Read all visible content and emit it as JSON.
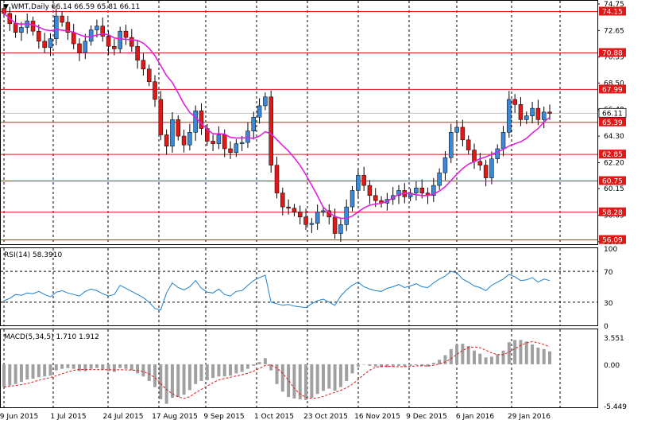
{
  "chart_data": {
    "type": "candlestick",
    "symbol_header": "WMT,Daily  66.14 66.59 65.81 66.11",
    "x_labels": [
      "9 Jun 2015",
      "1 Jul 2015",
      "24 Jul 2015",
      "17 Aug 2015",
      "9 Sep 2015",
      "1 Oct 2015",
      "23 Oct 2015",
      "16 Nov 2015",
      "9 Dec 2015",
      "6 Jan 2016",
      "29 Jan 2016"
    ],
    "price_axis": {
      "ylim": [
        55.75,
        75.0
      ],
      "ticks": [
        "74.75",
        "72.65",
        "70.55",
        "68.50",
        "66.40",
        "64.30",
        "62.20",
        "60.15",
        "58.05",
        "55.95"
      ]
    },
    "levels": [
      "74.15",
      "70.88",
      "67.99",
      "65.39",
      "62.85",
      "60.75",
      "58.28",
      "56.09"
    ],
    "last_price": "66.11",
    "ma_color": "#e020e0",
    "up_color": "#3c88d8",
    "down_color": "#e01818",
    "price_path": [
      74.0,
      73.2,
      72.5,
      72.9,
      73.4,
      72.6,
      71.8,
      71.3,
      72.0,
      73.8,
      73.3,
      72.5,
      71.6,
      70.9,
      71.8,
      72.7,
      73.0,
      72.2,
      71.4,
      71.2,
      72.6,
      72.1,
      71.4,
      70.3,
      69.6,
      68.6,
      67.2,
      64.4,
      63.5,
      65.6,
      64.3,
      63.6,
      64.6,
      66.3,
      64.9,
      63.9,
      63.7,
      64.4,
      63.3,
      63.0,
      63.7,
      63.8,
      64.7,
      65.8,
      66.7,
      67.4,
      62.0,
      59.8,
      58.7,
      58.6,
      58.3,
      57.9,
      57.3,
      57.4,
      58.3,
      58.4,
      57.9,
      56.6,
      57.3,
      58.7,
      60.0,
      61.2,
      60.4,
      59.6,
      59.2,
      59.0,
      59.3,
      59.6,
      60.0,
      59.5,
      59.8,
      60.2,
      59.8,
      59.6,
      60.4,
      61.4,
      62.6,
      64.6,
      65.0,
      64.0,
      63.2,
      62.3,
      62.0,
      61.0,
      62.5,
      63.3,
      64.6,
      67.2,
      66.8,
      65.6,
      65.9,
      66.5,
      65.6,
      66.2,
      66.1
    ],
    "rsi": {
      "label": "RSI(14) 58.3910",
      "ylim": [
        0,
        100
      ],
      "ticks": [
        "100",
        "70",
        "30",
        "0"
      ],
      "color": "#1e80d0",
      "values": [
        32,
        35,
        40,
        39,
        42,
        41,
        44,
        40,
        37,
        43,
        45,
        42,
        40,
        38,
        44,
        47,
        45,
        41,
        38,
        40,
        52,
        48,
        44,
        40,
        36,
        30,
        22,
        20,
        42,
        55,
        49,
        46,
        50,
        58,
        48,
        43,
        42,
        47,
        40,
        38,
        44,
        45,
        52,
        58,
        62,
        65,
        30,
        28,
        26,
        27,
        25,
        24,
        23,
        28,
        32,
        34,
        30,
        26,
        38,
        46,
        52,
        56,
        50,
        47,
        45,
        44,
        48,
        50,
        53,
        49,
        51,
        54,
        50,
        49,
        55,
        60,
        64,
        70,
        68,
        60,
        56,
        51,
        49,
        45,
        52,
        56,
        60,
        66,
        63,
        58,
        59,
        62,
        56,
        60,
        58
      ]
    },
    "macd": {
      "label": "MACD(5,34,5)  1.710 1.912",
      "ylim": [
        -5.449,
        3.551
      ],
      "ticks": [
        "3.551",
        "0.00",
        "-5.449"
      ],
      "hist_color": "#a0a0a0",
      "signal_color": "#e01818",
      "values": [
        -3.0,
        -2.8,
        -2.6,
        -2.3,
        -2.0,
        -1.9,
        -1.7,
        -1.6,
        -1.5,
        -0.8,
        -0.6,
        -0.5,
        -0.6,
        -0.9,
        -0.9,
        -0.6,
        -0.5,
        -0.7,
        -0.9,
        -1.0,
        -0.5,
        -0.6,
        -0.8,
        -1.2,
        -1.6,
        -2.2,
        -3.0,
        -4.6,
        -5.2,
        -4.4,
        -4.3,
        -4.0,
        -3.4,
        -2.6,
        -2.2,
        -2.1,
        -1.8,
        -1.6,
        -1.6,
        -1.5,
        -1.2,
        -1.0,
        -0.6,
        -0.2,
        0.3,
        0.8,
        -0.8,
        -2.6,
        -3.6,
        -4.3,
        -4.5,
        -4.6,
        -4.7,
        -4.4,
        -3.9,
        -3.5,
        -3.2,
        -3.5,
        -3.0,
        -2.2,
        -1.2,
        -0.3,
        0.0,
        -0.2,
        -0.3,
        -0.4,
        -0.4,
        -0.3,
        -0.2,
        -0.3,
        -0.2,
        -0.1,
        -0.2,
        -0.3,
        0.2,
        0.6,
        1.2,
        2.0,
        2.6,
        2.7,
        2.4,
        1.8,
        1.4,
        0.9,
        1.0,
        1.3,
        1.8,
        2.9,
        3.2,
        3.2,
        3.0,
        2.6,
        2.2,
        2.0,
        1.7
      ]
    }
  }
}
